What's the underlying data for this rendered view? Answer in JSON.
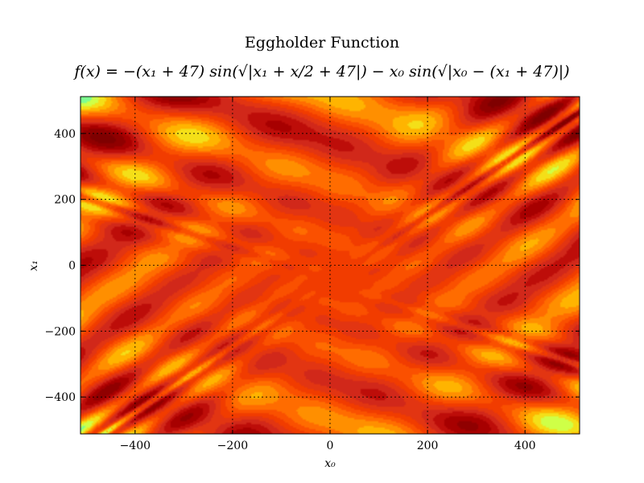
{
  "chart_data": {
    "type": "heatmap",
    "title": "Eggholder Function",
    "subtitle": "f(x) = −(x₁ + 47) sin(√|x₁ + x/2 + 47|) − x₀ sin(√|x₀ − (x₁ + 47)|)",
    "xlabel": "x₀",
    "ylabel": "x₁",
    "xlim": [
      -512,
      512
    ],
    "ylim": [
      -512,
      512
    ],
    "xticks": [
      -400,
      -200,
      0,
      200,
      400
    ],
    "yticks": [
      -400,
      -200,
      0,
      200,
      400
    ],
    "xtick_labels": [
      "−400",
      "−200",
      "0",
      "200",
      "400"
    ],
    "ytick_labels": [
      "−400",
      "−200",
      "0",
      "200",
      "400"
    ],
    "grid": true,
    "colormap": [
      "#7f0000",
      "#b30000",
      "#d7301f",
      "#f03b00",
      "#ff5a00",
      "#ff8c00",
      "#ffc000",
      "#e8ff30",
      "#7dff90"
    ]
  }
}
